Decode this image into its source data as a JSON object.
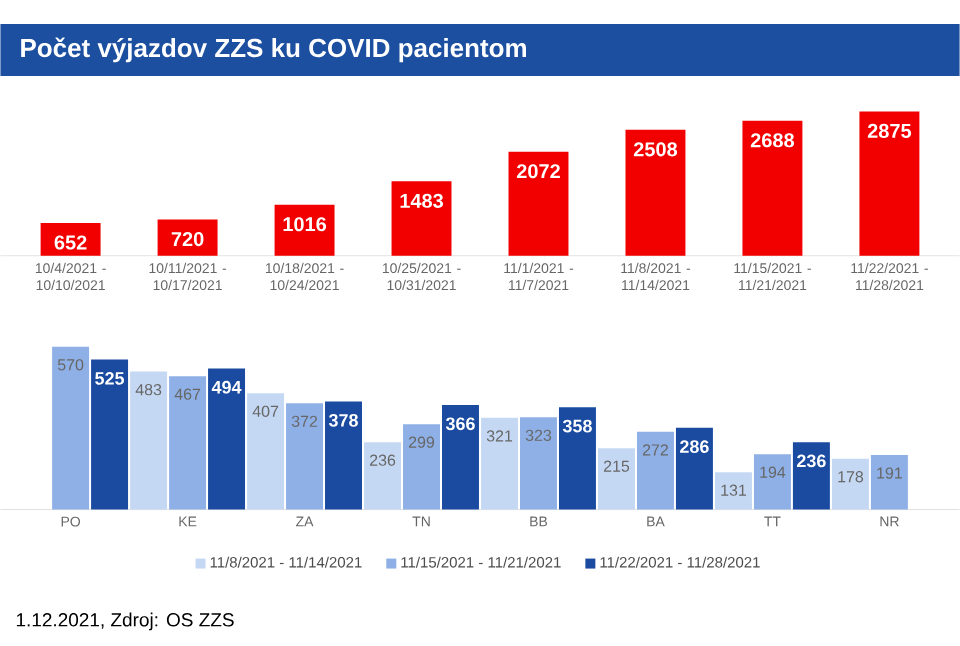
{
  "chart_data": [
    {
      "type": "bar",
      "title": "Počet výjazdov ZZS ku COVID pacientom",
      "categories": [
        "10/4/2021 - 10/10/2021",
        "10/11/2021 - 10/17/2021",
        "10/18/2021 - 10/24/2021",
        "10/25/2021 - 10/31/2021",
        "11/1/2021 - 11/7/2021",
        "11/8/2021 - 11/14/2021",
        "11/15/2021 - 11/21/2021",
        "11/22/2021 - 11/28/2021"
      ],
      "values": [
        652,
        720,
        1016,
        1483,
        2072,
        2508,
        2688,
        2875
      ],
      "color": "#f20000",
      "data_labels": true
    },
    {
      "type": "bar",
      "categories": [
        "PO",
        "KE",
        "ZA",
        "TN",
        "BB",
        "BA",
        "TT",
        "NR"
      ],
      "series": [
        {
          "name": "11/8/2021 - 11/14/2021",
          "color": "#c5d8f3",
          "values": [
            null,
            483,
            407,
            236,
            321,
            215,
            131,
            178
          ]
        },
        {
          "name": "11/15/2021 - 11/21/2021",
          "color": "#8eb0e6",
          "values": [
            570,
            467,
            372,
            299,
            323,
            272,
            194,
            191
          ]
        },
        {
          "name": "11/22/2021 - 11/28/2021",
          "color": "#1a4ba0",
          "values": [
            525,
            494,
            378,
            366,
            358,
            286,
            236,
            null
          ]
        }
      ],
      "legend": "bottom",
      "data_labels": true,
      "annotations": [
        "1.12.2021, Zdroj: OS ZZS"
      ]
    }
  ]
}
